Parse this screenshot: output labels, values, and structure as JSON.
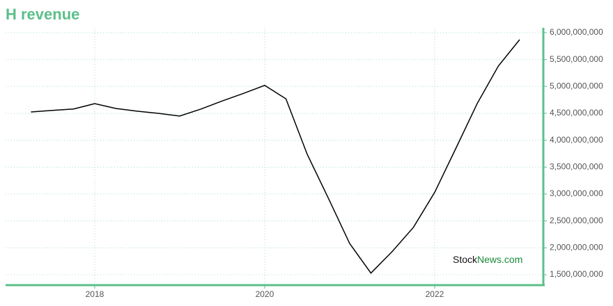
{
  "chart_data": {
    "type": "line",
    "title": "H revenue",
    "x": [
      2017.25,
      2017.5,
      2017.75,
      2018.0,
      2018.25,
      2018.5,
      2018.75,
      2019.0,
      2019.25,
      2019.5,
      2019.75,
      2020.0,
      2020.25,
      2020.5,
      2020.75,
      2021.0,
      2021.25,
      2021.5,
      2021.75,
      2022.0,
      2022.25,
      2022.5,
      2022.75,
      2023.0
    ],
    "series": [
      {
        "name": "H revenue",
        "color": "#000000",
        "values": [
          4526000000,
          4555000000,
          4580000000,
          4680000000,
          4590000000,
          4540000000,
          4500000000,
          4450000000,
          4580000000,
          4730000000,
          4870000000,
          5020000000,
          4770000000,
          3740000000,
          2920000000,
          2080000000,
          1530000000,
          1930000000,
          2380000000,
          3030000000,
          3850000000,
          4680000000,
          5380000000,
          5870000000
        ]
      }
    ],
    "xlim": [
      2016.951,
      2023.279
    ],
    "xticks": [
      2018,
      2020,
      2022
    ],
    "ylim": [
      1306000000,
      6090000000
    ],
    "yticks": [
      {
        "value": 1500000000,
        "label": "1,500,000,000"
      },
      {
        "value": 2000000000,
        "label": "2,000,000,000"
      },
      {
        "value": 2500000000,
        "label": "2,500,000,000"
      },
      {
        "value": 3000000000,
        "label": "3,000,000,000"
      },
      {
        "value": 3500000000,
        "label": "3,500,000,000"
      },
      {
        "value": 4000000000,
        "label": "4,000,000,000"
      },
      {
        "value": 4500000000,
        "label": "4,500,000,000"
      },
      {
        "value": 5000000000,
        "label": "5,000,000,000"
      },
      {
        "value": 5500000000,
        "label": "5,500,000,000"
      },
      {
        "value": 6000000000,
        "label": "6,000,000,000"
      }
    ],
    "grid": true,
    "watermark": [
      "Stock",
      "News",
      ".com"
    ]
  }
}
